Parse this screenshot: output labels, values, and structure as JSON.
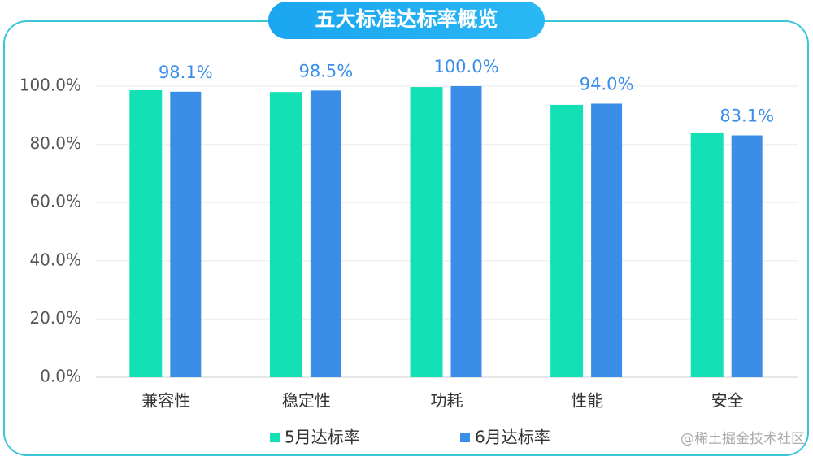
{
  "chart_data": {
    "type": "bar",
    "title": "五大标准达标率概览",
    "categories": [
      "兼容性",
      "稳定性",
      "功耗",
      "性能",
      "安全"
    ],
    "series": [
      {
        "name": "5月达标率",
        "color": "#14e0b6",
        "values": [
          98.6,
          98.0,
          99.7,
          93.6,
          84.1
        ]
      },
      {
        "name": "6月达标率",
        "color": "#3a8ee8",
        "values": [
          98.1,
          98.5,
          100.0,
          94.0,
          83.1
        ],
        "value_labels": [
          "98.1%",
          "98.5%",
          "100.0%",
          "94.0%",
          "83.1%"
        ]
      }
    ],
    "ylim": [
      0,
      100
    ],
    "yticks": [
      {
        "value": 0,
        "label": "0.0%"
      },
      {
        "value": 20,
        "label": "20.0%"
      },
      {
        "value": 40,
        "label": "40.0%"
      },
      {
        "value": 60,
        "label": "60.0%"
      },
      {
        "value": 80,
        "label": "80.0%"
      },
      {
        "value": 100,
        "label": "100.0%"
      }
    ],
    "grid": true,
    "watermark": "@稀土掘金技术社区"
  }
}
